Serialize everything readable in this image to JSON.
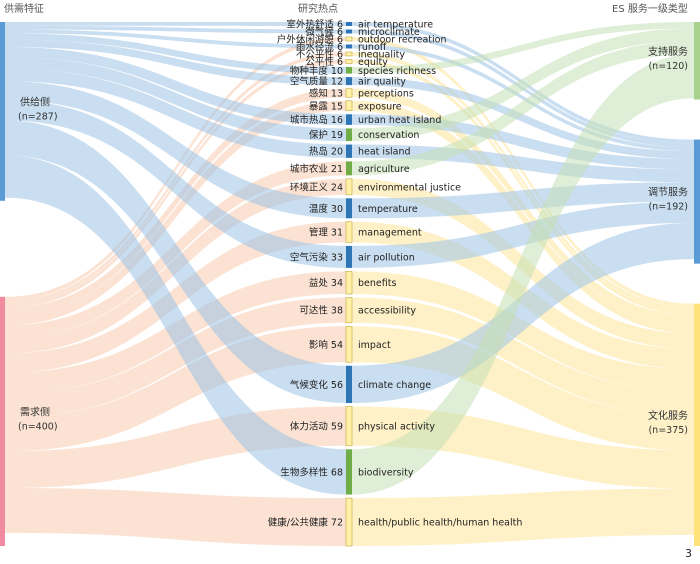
{
  "headers": {
    "left": "供需特征",
    "middle": "研究热点",
    "right": "ES 服务一级类型"
  },
  "page_number": "3",
  "colors": {
    "supply": "#5b9bd5",
    "demand": "#f08aa0",
    "support": "#a9d18e",
    "regulate": "#5b9bd5",
    "culture": "#ffe27a",
    "flow_supply": "#9dc3e6",
    "flow_demand": "#f8cbad",
    "flow_support": "#c5e0b4",
    "flow_regulate": "#9dc3e6",
    "flow_culture": "#ffe699"
  },
  "chart_data": {
    "type": "sankey",
    "left_nodes": [
      {
        "id": "supply",
        "label": "供给侧",
        "n_label": "(n=287)",
        "value": 287,
        "color": "#5b9bd5"
      },
      {
        "id": "demand",
        "label": "需求侧",
        "n_label": "(n=400)",
        "value": 400,
        "color": "#f08aa0"
      }
    ],
    "right_nodes": [
      {
        "id": "support",
        "label": "支持服务",
        "n_label": "(n=120)",
        "value": 120,
        "color": "#a9d18e"
      },
      {
        "id": "regulate",
        "label": "调节服务",
        "n_label": "(n=192)",
        "value": 192,
        "color": "#5b9bd5"
      },
      {
        "id": "culture",
        "label": "文化服务",
        "n_label": "(n=375)",
        "value": 375,
        "color": "#ffe27a"
      }
    ],
    "topics": [
      {
        "cn": "室外热舒适",
        "en": "air temperature",
        "value": 6,
        "side": "supply",
        "service": "regulate"
      },
      {
        "cn": "微气候",
        "en": "microclimate",
        "value": 6,
        "side": "supply",
        "service": "regulate"
      },
      {
        "cn": "户外休闲游憩",
        "en": "outdoor recreation",
        "value": 6,
        "side": "demand",
        "service": "culture"
      },
      {
        "cn": "雨水径流",
        "en": "runoff",
        "value": 6,
        "side": "supply",
        "service": "regulate"
      },
      {
        "cn": "不公平性",
        "en": "inequality",
        "value": 6,
        "side": "demand",
        "service": "culture"
      },
      {
        "cn": "公平性",
        "en": "equity",
        "value": 6,
        "side": "demand",
        "service": "culture"
      },
      {
        "cn": "物种丰度",
        "en": "species richness",
        "value": 10,
        "side": "supply",
        "service": "support"
      },
      {
        "cn": "空气质量",
        "en": "air quality",
        "value": 12,
        "side": "supply",
        "service": "regulate"
      },
      {
        "cn": "感知",
        "en": "perceptions",
        "value": 13,
        "side": "demand",
        "service": "culture"
      },
      {
        "cn": "暴露",
        "en": "exposure",
        "value": 15,
        "side": "demand",
        "service": "culture"
      },
      {
        "cn": "城市热岛",
        "en": "urban heat island",
        "value": 16,
        "side": "supply",
        "service": "regulate"
      },
      {
        "cn": "保护",
        "en": "conservation",
        "value": 19,
        "side": "supply",
        "service": "support"
      },
      {
        "cn": "热岛",
        "en": "heat island",
        "value": 20,
        "side": "supply",
        "service": "regulate"
      },
      {
        "cn": "城市农业",
        "en": "agriculture",
        "value": 21,
        "side": "demand",
        "service": "support"
      },
      {
        "cn": "环境正义",
        "en": "environmental justice",
        "value": 24,
        "side": "demand",
        "service": "culture"
      },
      {
        "cn": "温度",
        "en": "temperature",
        "value": 30,
        "side": "supply",
        "service": "regulate"
      },
      {
        "cn": "管理",
        "en": "management",
        "value": 31,
        "side": "demand",
        "service": "culture"
      },
      {
        "cn": "空气污染",
        "en": "air pollution",
        "value": 33,
        "side": "supply",
        "service": "regulate"
      },
      {
        "cn": "益处",
        "en": "benefits",
        "value": 34,
        "side": "demand",
        "service": "culture"
      },
      {
        "cn": "可达性",
        "en": "accessibility",
        "value": 38,
        "side": "demand",
        "service": "culture"
      },
      {
        "cn": "影响",
        "en": "impact",
        "value": 54,
        "side": "demand",
        "service": "culture"
      },
      {
        "cn": "气候变化",
        "en": "climate change",
        "value": 56,
        "side": "supply",
        "service": "regulate"
      },
      {
        "cn": "体力活动",
        "en": "physical activity",
        "value": 59,
        "side": "demand",
        "service": "culture"
      },
      {
        "cn": "生物多样性",
        "en": "biodiversity",
        "value": 68,
        "side": "supply",
        "service": "support"
      },
      {
        "cn": "健康/公共健康",
        "en": "health/public health/human health",
        "value": 72,
        "side": "demand",
        "service": "culture"
      }
    ]
  }
}
